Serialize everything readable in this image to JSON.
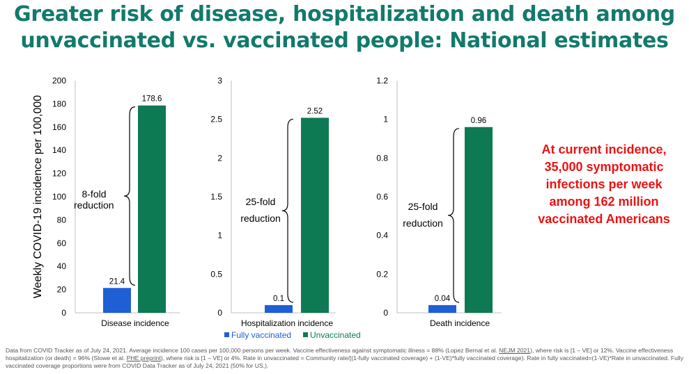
{
  "title": {
    "line1": "Greater risk of disease, hospitalization and death among",
    "line2": "unvaccinated vs. vaccinated people: National estimates"
  },
  "colors": {
    "title": "#127a6b",
    "fully_vaccinated": "#1f5fd6",
    "unvaccinated": "#0d7a54",
    "callout": "#ee1111"
  },
  "chart_data": [
    {
      "type": "bar",
      "categories": [
        "Disease incidence"
      ],
      "series": [
        {
          "name": "Fully vaccinated",
          "values": [
            21.4
          ]
        },
        {
          "name": "Unvaccinated",
          "values": [
            178.6
          ]
        }
      ],
      "value_labels": [
        "21.4",
        "178.6"
      ],
      "ylabel": "Weekly COVID-19 incidence per 100,000",
      "ylim": [
        0,
        200
      ],
      "yticks": [
        "0",
        "20",
        "40",
        "60",
        "80",
        "100",
        "120",
        "140",
        "160",
        "180",
        "200"
      ],
      "annotation": [
        "8-fold",
        "reduction"
      ]
    },
    {
      "type": "bar",
      "categories": [
        "Hospitalization incidence"
      ],
      "series": [
        {
          "name": "Fully vaccinated",
          "values": [
            0.1
          ]
        },
        {
          "name": "Unvaccinated",
          "values": [
            2.52
          ]
        }
      ],
      "value_labels": [
        "0.1",
        "2.52"
      ],
      "ylim": [
        0,
        3
      ],
      "yticks": [
        "0",
        "0.5",
        "1",
        "1.5",
        "2",
        "2.5",
        "3"
      ],
      "annotation": [
        "25-fold",
        "reduction"
      ]
    },
    {
      "type": "bar",
      "categories": [
        "Death incidence"
      ],
      "series": [
        {
          "name": "Fully vaccinated",
          "values": [
            0.04
          ]
        },
        {
          "name": "Unvaccinated",
          "values": [
            0.96
          ]
        }
      ],
      "value_labels": [
        "0.04",
        "0.96"
      ],
      "ylim": [
        0,
        1.2
      ],
      "yticks": [
        "0",
        "0.2",
        "0.4",
        "0.6",
        "0.8",
        "1",
        "1.2"
      ],
      "annotation": [
        "25-fold",
        "reduction"
      ]
    }
  ],
  "legend": {
    "fully_vaccinated": "Fully vaccinated",
    "unvaccinated": "Unvaccinated"
  },
  "callout": {
    "line1": "At current incidence,",
    "line2": "35,000 symptomatic",
    "line3": "infections per week",
    "line4": "among 162 million",
    "line5": "vaccinated Americans"
  },
  "footnote": {
    "p1": "Data from COVID Tracker as of July 24, 2021. Average incidence 100 cases per 100,000 persons per week. Vaccine effectiveness against symptomatic illness = 88% (Lopez Bernal et al. ",
    "link1": "NEJM 2021",
    "p2": "), where risk is [1 – VE] or 12%. Vaccine effectiveness hospitalization (or death) = 96% (Stowe et al. ",
    "link2": "PHE preprint",
    "p3": "), where risk is [1 – VE] or 4%.  Rate in unvaccinated = Community rate/[(1-fully vaccinated coverage) + (1-VE)*fully vaccinated coverage). Rate in fully vaccinated=(1-VE)*Rate in unvaccinated. Fully vaccinated coverage proportions were from COVID Data Tracker as of July 24, 2021 (50% for US,)."
  }
}
